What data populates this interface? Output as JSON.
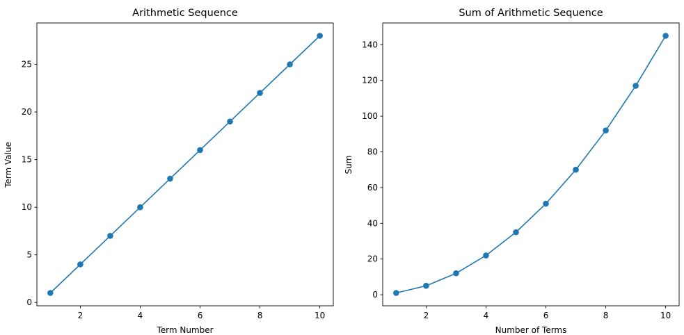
{
  "chart_data": [
    {
      "type": "line",
      "title": "Arithmetic Sequence",
      "xlabel": "Term Number",
      "ylabel": "Term Value",
      "x": [
        1,
        2,
        3,
        4,
        5,
        6,
        7,
        8,
        9,
        10
      ],
      "series": [
        {
          "values": [
            1,
            4,
            7,
            10,
            13,
            16,
            19,
            22,
            25,
            28
          ],
          "color": "#1f77b4",
          "marker": "circle"
        }
      ],
      "xlim": [
        0.55,
        10.45
      ],
      "ylim": [
        -0.35,
        29.35
      ],
      "xticks": [
        2,
        4,
        6,
        8,
        10
      ],
      "yticks": [
        0,
        5,
        10,
        15,
        20,
        25
      ],
      "grid": false
    },
    {
      "type": "line",
      "title": "Sum of Arithmetic Sequence",
      "xlabel": "Number of Terms",
      "ylabel": "Sum",
      "x": [
        1,
        2,
        3,
        4,
        5,
        6,
        7,
        8,
        9,
        10
      ],
      "series": [
        {
          "values": [
            1,
            5,
            12,
            22,
            35,
            51,
            70,
            92,
            117,
            145
          ],
          "color": "#1f77b4",
          "marker": "circle"
        }
      ],
      "xlim": [
        0.55,
        10.45
      ],
      "ylim": [
        -6.2,
        152.2
      ],
      "xticks": [
        2,
        4,
        6,
        8,
        10
      ],
      "yticks": [
        0,
        20,
        40,
        60,
        80,
        100,
        120,
        140
      ],
      "grid": false
    }
  ]
}
